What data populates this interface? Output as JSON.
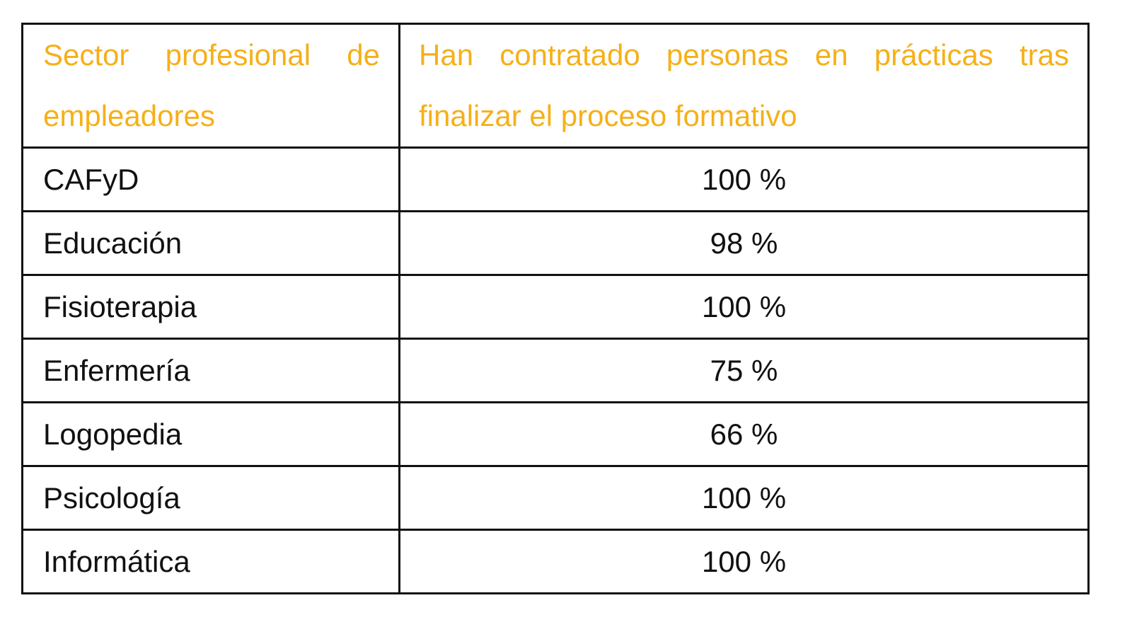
{
  "table": {
    "header_color": "#F5B018",
    "headers": [
      "Sector profesional de empleadores",
      "Han contratado personas en prácticas tras finalizar el proceso formativo"
    ],
    "rows": [
      {
        "sector": "CAFyD",
        "value": "100 %"
      },
      {
        "sector": "Educación",
        "value": "98 %"
      },
      {
        "sector": "Fisioterapia",
        "value": "100 %"
      },
      {
        "sector": "Enfermería",
        "value": "75 %"
      },
      {
        "sector": "Logopedia",
        "value": "66 %"
      },
      {
        "sector": "Psicología",
        "value": "100 %"
      },
      {
        "sector": "Informática",
        "value": "100 %"
      }
    ]
  }
}
